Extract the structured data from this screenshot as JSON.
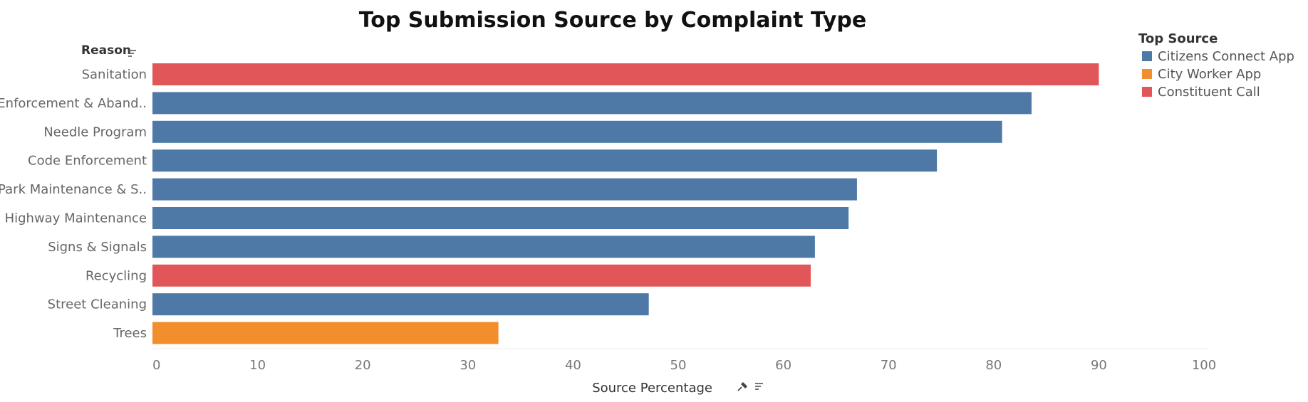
{
  "chart_data": {
    "type": "bar",
    "orientation": "horizontal",
    "title": "Top Submission Source by Complaint Type",
    "row_header": "Reason",
    "xlabel": "Source Percentage",
    "xlim": [
      0,
      100
    ],
    "x_ticks": [
      0,
      10,
      20,
      30,
      40,
      50,
      60,
      70,
      80,
      90,
      100
    ],
    "legend_title": "Top Source",
    "legend_position": "top-right",
    "legend": [
      {
        "name": "Citizens Connect App",
        "color": "#4e79a7"
      },
      {
        "name": "City Worker App",
        "color": "#f28e2b"
      },
      {
        "name": "Constituent Call",
        "color": "#e15759"
      }
    ],
    "categories": [
      "Sanitation",
      "Enforcement & Aband..",
      "Needle Program",
      "Code Enforcement",
      "Park Maintenance & S..",
      "Highway Maintenance",
      "Signs & Signals",
      "Recycling",
      "Street Cleaning",
      "Trees"
    ],
    "values": [
      90.0,
      83.6,
      80.8,
      74.6,
      67.0,
      66.2,
      63.0,
      62.6,
      47.2,
      32.9
    ],
    "sources": [
      "Constituent Call",
      "Citizens Connect App",
      "Citizens Connect App",
      "Citizens Connect App",
      "Citizens Connect App",
      "Citizens Connect App",
      "Citizens Connect App",
      "Constituent Call",
      "Citizens Connect App",
      "City Worker App"
    ],
    "grid": false
  }
}
